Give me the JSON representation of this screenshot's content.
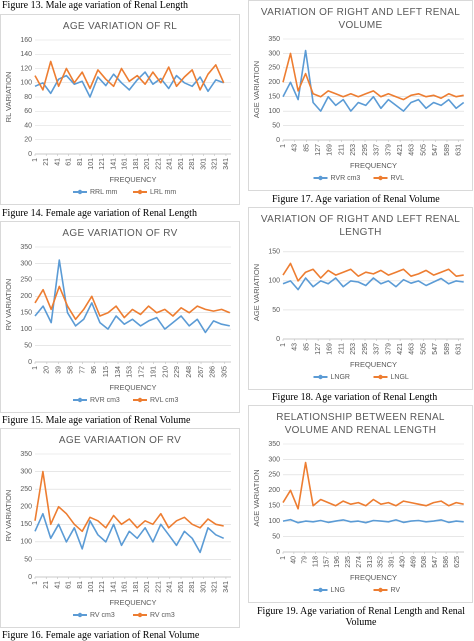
{
  "captions": [
    "Figure 13. Male age variation of Renal Length",
    "Figure 14. Female age variation of Renal Length",
    "Figure 15. Male age variation of Renal Volume",
    "Figure 16. Female age variation of Renal Volume",
    "Figure 17. Age variation of Renal Volume",
    "Figure 18. Age variation of Renal Length",
    "Figure 19. Age variation of Renal Length and Renal Volume"
  ],
  "chart_data": [
    {
      "type": "line",
      "title": "AGE VARIATION OF RL",
      "y_label": "RL VARIATION",
      "x_label": "FREQUENCY",
      "x": [
        1,
        15,
        29,
        43,
        57,
        71,
        85,
        99,
        113,
        127,
        141,
        155,
        169,
        183,
        197,
        211,
        225,
        239,
        253,
        267,
        281,
        295,
        309,
        323,
        337
      ],
      "xlim": [
        1,
        350
      ],
      "xticks": [
        1,
        21,
        41,
        61,
        81,
        101,
        121,
        141,
        161,
        181,
        201,
        221,
        241,
        261,
        281,
        301,
        321,
        341
      ],
      "ylim": [
        0,
        160
      ],
      "yticks": [
        0,
        20,
        40,
        60,
        80,
        100,
        120,
        140,
        160
      ],
      "grid": true,
      "series": [
        {
          "name": "RRL mm",
          "color": "#5b9bd5",
          "values": [
            95,
            100,
            85,
            105,
            110,
            98,
            102,
            80,
            108,
            96,
            112,
            100,
            90,
            104,
            115,
            98,
            106,
            92,
            110,
            100,
            95,
            108,
            88,
            104,
            100
          ]
        },
        {
          "name": "LRL mm",
          "color": "#ed7d31",
          "values": [
            110,
            90,
            130,
            95,
            120,
            100,
            115,
            92,
            118,
            105,
            95,
            120,
            102,
            110,
            98,
            115,
            100,
            122,
            95,
            108,
            118,
            90,
            112,
            125,
            100
          ]
        }
      ]
    },
    {
      "type": "line",
      "title": "AGE VARIATION OF RV",
      "y_label": "RV VARIATION",
      "x_label": "FREQUENCY",
      "x": [
        1,
        14,
        27,
        40,
        53,
        66,
        79,
        92,
        105,
        118,
        131,
        144,
        157,
        170,
        183,
        196,
        209,
        222,
        235,
        248,
        261,
        274,
        287,
        300,
        313
      ],
      "xlim": [
        1,
        315
      ],
      "xticks": [
        1,
        20,
        39,
        58,
        77,
        96,
        115,
        134,
        153,
        172,
        191,
        210,
        229,
        248,
        267,
        286,
        305
      ],
      "ylim": [
        0,
        350
      ],
      "yticks": [
        0,
        50,
        100,
        150,
        200,
        250,
        300,
        350
      ],
      "grid": true,
      "series": [
        {
          "name": "RVR cm3",
          "color": "#5b9bd5",
          "values": [
            140,
            170,
            120,
            310,
            150,
            110,
            130,
            180,
            120,
            100,
            140,
            115,
            130,
            110,
            125,
            135,
            100,
            120,
            140,
            110,
            130,
            90,
            125,
            115,
            110
          ]
        },
        {
          "name": "RVL cm3",
          "color": "#ed7d31",
          "values": [
            180,
            220,
            160,
            230,
            170,
            130,
            160,
            200,
            140,
            150,
            170,
            135,
            160,
            145,
            170,
            150,
            160,
            140,
            165,
            150,
            170,
            160,
            155,
            160,
            150
          ]
        }
      ]
    },
    {
      "type": "line",
      "title": "AGE VARIAATION OF RV",
      "y_label": "RV VARIATION",
      "x_label": "FREQUENCY",
      "x": [
        1,
        15,
        29,
        43,
        57,
        71,
        85,
        99,
        113,
        127,
        141,
        155,
        169,
        183,
        197,
        211,
        225,
        239,
        253,
        267,
        281,
        295,
        309,
        323,
        337
      ],
      "xlim": [
        1,
        350
      ],
      "xticks": [
        1,
        21,
        41,
        61,
        81,
        101,
        121,
        141,
        161,
        181,
        201,
        221,
        241,
        261,
        281,
        301,
        321,
        341
      ],
      "ylim": [
        0,
        350
      ],
      "yticks": [
        0,
        50,
        100,
        150,
        200,
        250,
        300,
        350
      ],
      "grid": true,
      "series": [
        {
          "name": "RV cm3",
          "color": "#5b9bd5",
          "values": [
            130,
            180,
            110,
            150,
            100,
            140,
            80,
            160,
            120,
            100,
            150,
            90,
            130,
            110,
            140,
            100,
            150,
            120,
            90,
            130,
            110,
            70,
            140,
            120,
            110
          ]
        },
        {
          "name": "RV cm3",
          "color": "#ed7d31",
          "values": [
            160,
            300,
            150,
            200,
            180,
            150,
            130,
            170,
            160,
            140,
            175,
            150,
            165,
            140,
            160,
            150,
            180,
            140,
            160,
            170,
            150,
            140,
            165,
            150,
            145
          ]
        }
      ]
    },
    {
      "type": "line",
      "title": "VARIATION OF RIGHT AND LEFT RENAL VOLUME",
      "y_label": "AGE VARIATION",
      "x_label": "FREQUENCY",
      "x": [
        1,
        28,
        55,
        82,
        109,
        136,
        163,
        190,
        217,
        244,
        271,
        298,
        325,
        352,
        379,
        406,
        433,
        460,
        487,
        514,
        541,
        568,
        595,
        622,
        649
      ],
      "xlim": [
        1,
        650
      ],
      "xticks": [
        1,
        43,
        85,
        127,
        169,
        211,
        253,
        295,
        337,
        379,
        421,
        463,
        505,
        547,
        589,
        631
      ],
      "ylim": [
        0,
        350
      ],
      "yticks": [
        0,
        50,
        100,
        150,
        200,
        250,
        300,
        350
      ],
      "grid": true,
      "series": [
        {
          "name": "RVR cm3",
          "color": "#5b9bd5",
          "values": [
            150,
            200,
            140,
            310,
            130,
            100,
            150,
            120,
            140,
            100,
            130,
            120,
            150,
            110,
            140,
            120,
            100,
            130,
            140,
            110,
            130,
            120,
            140,
            110,
            130
          ]
        },
        {
          "name": "RVL",
          "color": "#ed7d31",
          "values": [
            200,
            300,
            170,
            230,
            160,
            150,
            170,
            160,
            150,
            160,
            150,
            160,
            170,
            150,
            160,
            150,
            140,
            155,
            160,
            150,
            155,
            145,
            160,
            150,
            155
          ]
        }
      ]
    },
    {
      "type": "line",
      "title": "VARIATION OF RIGHT AND LEFT RENAL LENGTH",
      "y_label": "AGE VARIATION",
      "x_label": "FREQUENCY",
      "x": [
        1,
        28,
        55,
        82,
        109,
        136,
        163,
        190,
        217,
        244,
        271,
        298,
        325,
        352,
        379,
        406,
        433,
        460,
        487,
        514,
        541,
        568,
        595,
        622,
        649
      ],
      "xlim": [
        1,
        650
      ],
      "xticks": [
        1,
        43,
        85,
        127,
        169,
        211,
        253,
        295,
        337,
        379,
        421,
        463,
        505,
        547,
        589,
        631
      ],
      "ylim": [
        0,
        160
      ],
      "yticks": [
        0,
        50,
        100,
        150
      ],
      "grid": true,
      "series": [
        {
          "name": "LNGR",
          "color": "#5b9bd5",
          "values": [
            95,
            100,
            85,
            105,
            90,
            100,
            95,
            105,
            90,
            100,
            98,
            92,
            105,
            95,
            100,
            90,
            102,
            96,
            100,
            92,
            98,
            104,
            95,
            100,
            98
          ]
        },
        {
          "name": "LNGL",
          "color": "#ed7d31",
          "values": [
            110,
            130,
            100,
            115,
            120,
            105,
            118,
            110,
            115,
            120,
            108,
            115,
            112,
            118,
            110,
            115,
            120,
            108,
            112,
            118,
            110,
            115,
            120,
            108,
            110
          ]
        }
      ]
    },
    {
      "type": "line",
      "title": "RELATIONSHIP BETWEEN RENAL VOLUME AND RENAL LENGTH",
      "y_label": "AGE VARIATION",
      "x_label": "FREQUENCY",
      "x": [
        1,
        28,
        55,
        82,
        109,
        136,
        163,
        190,
        217,
        244,
        271,
        298,
        325,
        352,
        379,
        406,
        433,
        460,
        487,
        514,
        541,
        568,
        595,
        622,
        649
      ],
      "xlim": [
        1,
        650
      ],
      "xticks": [
        1,
        40,
        79,
        118,
        157,
        196,
        235,
        274,
        313,
        352,
        391,
        430,
        469,
        508,
        547,
        586,
        625
      ],
      "ylim": [
        0,
        350
      ],
      "yticks": [
        0,
        50,
        100,
        150,
        200,
        250,
        300,
        350
      ],
      "grid": true,
      "series": [
        {
          "name": "LNG",
          "color": "#5b9bd5",
          "values": [
            100,
            105,
            95,
            100,
            98,
            102,
            96,
            100,
            104,
            98,
            100,
            95,
            102,
            100,
            98,
            104,
            96,
            100,
            102,
            98,
            100,
            104,
            96,
            100,
            98
          ]
        },
        {
          "name": "RV",
          "color": "#ed7d31",
          "values": [
            160,
            200,
            140,
            290,
            150,
            170,
            160,
            150,
            165,
            155,
            160,
            150,
            170,
            155,
            160,
            150,
            165,
            160,
            155,
            150,
            160,
            165,
            150,
            160,
            155
          ]
        }
      ]
    }
  ]
}
